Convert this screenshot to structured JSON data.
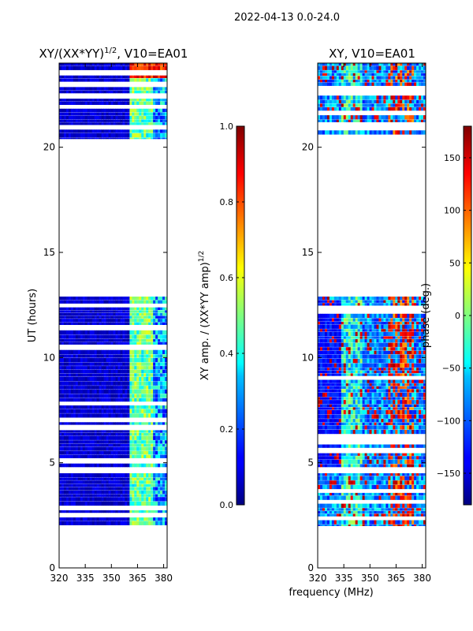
{
  "suptitle": "2022-04-13 0.0-24.0",
  "colors": {
    "jet": [
      "#00007f",
      "#0000ff",
      "#007fff",
      "#00ffff",
      "#7fff7f",
      "#ffff00",
      "#ff7f00",
      "#ff0000",
      "#7f0000"
    ]
  },
  "chart_data": [
    {
      "type": "heatmap",
      "title": "XY/(XX*YY)^1/2, V10=EA01",
      "title_main": "XY/(XX*YY)",
      "title_sup": "1/2",
      "title_rest": ", V10=EA01",
      "xlabel": "",
      "ylabel": "UT (hours)",
      "xlim": [
        320,
        382
      ],
      "ylim": [
        0,
        24
      ],
      "xticks": [
        320,
        335,
        350,
        365,
        380
      ],
      "yticks": [
        0,
        5,
        10,
        15,
        20
      ],
      "colorbar": {
        "label": "XY amp. / (XX*YY amp)^1/2",
        "label_main": "XY amp. / (XX*YY amp)",
        "label_sup": "1/2",
        "range": [
          0.0,
          1.0
        ],
        "ticks": [
          "0.0",
          "0.2",
          "0.4",
          "0.6",
          "0.8",
          "1.0"
        ]
      },
      "data_blocks_ut": [
        [
          2.0,
          4.5
        ],
        [
          4.8,
          12.9
        ],
        [
          20.4,
          24.0
        ]
      ]
    },
    {
      "type": "heatmap",
      "title": "XY, V10=EA01",
      "xlabel": "frequency (MHz)",
      "ylabel": "",
      "xlim": [
        320,
        382
      ],
      "ylim": [
        0,
        24
      ],
      "xticks": [
        320,
        335,
        350,
        365,
        380
      ],
      "yticks": [
        0,
        5,
        10,
        15,
        20
      ],
      "colorbar": {
        "label": "phase (deg.)",
        "range": [
          -180,
          180
        ],
        "ticks": [
          "−150",
          "−100",
          "−50",
          "0",
          "50",
          "100",
          "150"
        ]
      },
      "data_blocks_ut": [
        [
          2.0,
          4.5
        ],
        [
          4.8,
          12.9
        ],
        [
          20.4,
          24.0
        ]
      ]
    }
  ]
}
